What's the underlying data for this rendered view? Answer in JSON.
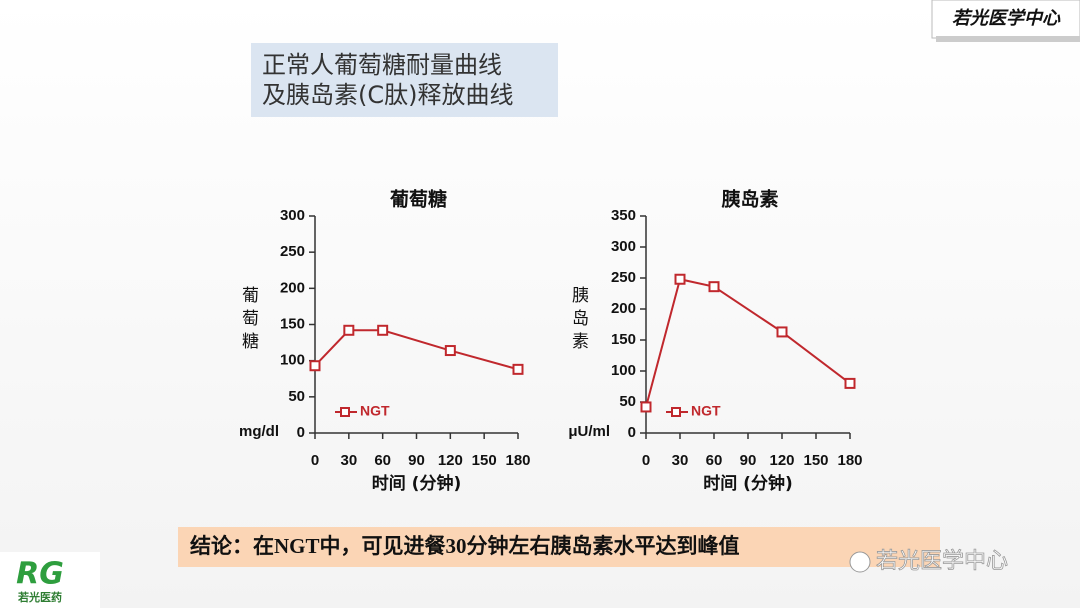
{
  "slide_title": [
    "正常人葡萄糖耐量曲线",
    "及胰岛素(C肽)释放曲线"
  ],
  "logo": "若光医学中心",
  "chart_data": [
    {
      "type": "line",
      "title": "葡萄糖",
      "y_label": "葡萄糖",
      "y_unit": "mg/dl",
      "x_label": "时间 (分钟)",
      "x": [
        0,
        30,
        60,
        120,
        180
      ],
      "series": [
        {
          "name": "NGT",
          "color": "#c0282d",
          "values": [
            93,
            142,
            142,
            114,
            88
          ]
        }
      ],
      "xlim": [
        0,
        180
      ],
      "xticks": [
        0,
        30,
        60,
        90,
        120,
        150,
        180
      ],
      "ylim": [
        0,
        300
      ],
      "yticks": [
        0,
        50,
        100,
        150,
        200,
        250,
        300
      ]
    },
    {
      "type": "line",
      "title": "胰岛素",
      "y_label": "胰岛素",
      "y_unit": "μU/ml",
      "x_label": "时间 (分钟)",
      "x": [
        0,
        30,
        60,
        120,
        180
      ],
      "series": [
        {
          "name": "NGT",
          "color": "#c0282d",
          "values": [
            42,
            248,
            236,
            163,
            80
          ]
        }
      ],
      "xlim": [
        0,
        180
      ],
      "xticks": [
        0,
        30,
        60,
        90,
        120,
        150,
        180
      ],
      "ylim": [
        0,
        350
      ],
      "yticks": [
        0,
        50,
        100,
        150,
        200,
        250,
        300,
        350
      ]
    }
  ],
  "conclusion": "结论：在NGT中，可见进餐30分钟左右胰岛素水平达到峰值",
  "watermark": "若光医学中心",
  "brand": "若光医药"
}
